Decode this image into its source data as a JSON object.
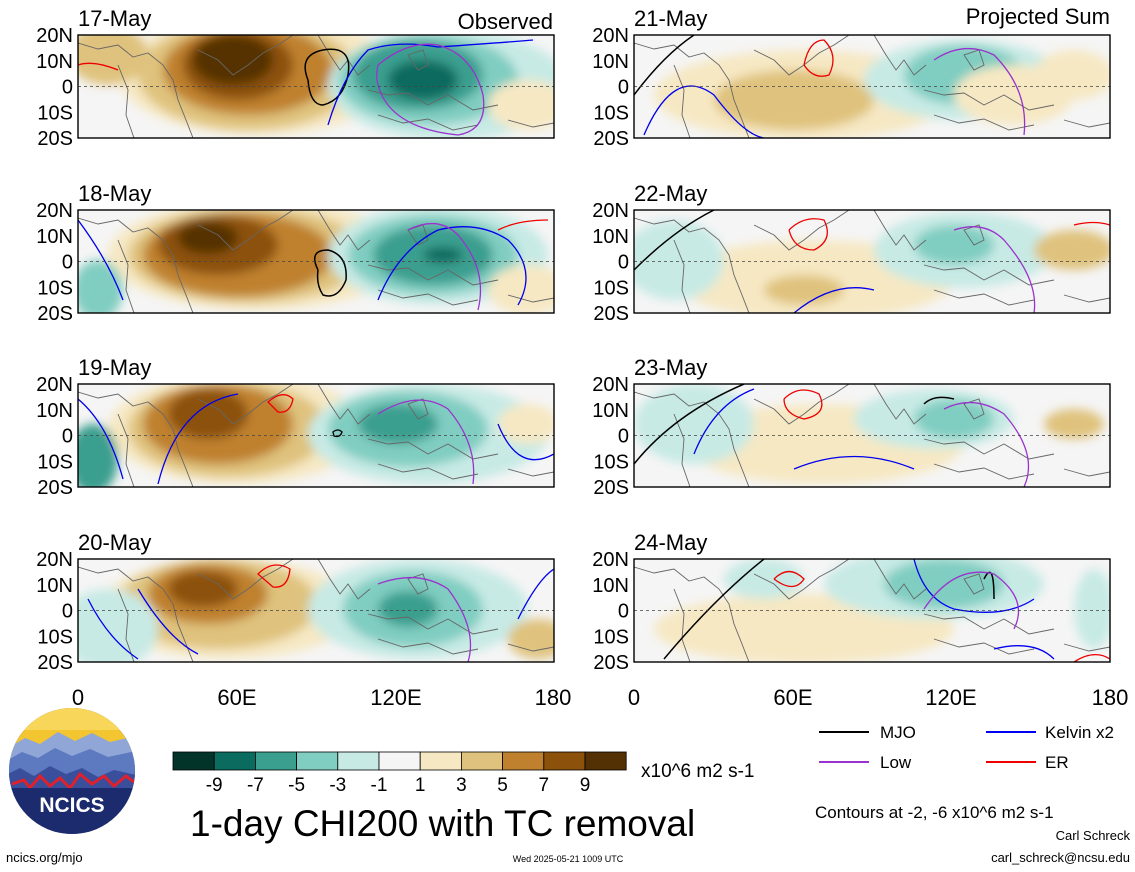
{
  "column_titles": {
    "left": "Observed",
    "right": "Projected Sum"
  },
  "panels": [
    {
      "date": "17-May",
      "column": "left"
    },
    {
      "date": "18-May",
      "column": "left"
    },
    {
      "date": "19-May",
      "column": "left"
    },
    {
      "date": "20-May",
      "column": "left"
    },
    {
      "date": "21-May",
      "column": "right"
    },
    {
      "date": "22-May",
      "column": "right"
    },
    {
      "date": "23-May",
      "column": "right"
    },
    {
      "date": "24-May",
      "column": "right"
    }
  ],
  "lat_labels": [
    "20N",
    "10N",
    "0",
    "10S",
    "20S"
  ],
  "lon_labels": [
    "0",
    "60E",
    "120E",
    "180"
  ],
  "colorbar": {
    "colors": [
      "#03342a",
      "#0b6b5e",
      "#3a9f8f",
      "#80cdc1",
      "#c7eae5",
      "#f5f5f5",
      "#f6e8c3",
      "#dfc27d",
      "#bf812d",
      "#8c510a",
      "#543005"
    ],
    "tick_labels": [
      "-9",
      "-7",
      "-5",
      "-3",
      "-1",
      "1",
      "3",
      "5",
      "7",
      "9"
    ],
    "units": "x10^6 m2 s-1"
  },
  "legend": [
    {
      "label": "MJO",
      "color": "#000000"
    },
    {
      "label": "Kelvin x2",
      "color": "#0000ee"
    },
    {
      "label": "Low",
      "color": "#9a32cd"
    },
    {
      "label": "ER",
      "color": "#ee0000"
    }
  ],
  "contour_note": "Contours at -2, -6 x10^6 m2 s-1",
  "main_title": "1-day CHI200 with TC removal",
  "logo_text": "NCICS",
  "footer": {
    "left": "ncics.org/mjo",
    "center": "Wed 2025-05-21 1009 UTC",
    "author": "Carl Schreck",
    "email": "carl_schreck@ncsu.edu"
  }
}
